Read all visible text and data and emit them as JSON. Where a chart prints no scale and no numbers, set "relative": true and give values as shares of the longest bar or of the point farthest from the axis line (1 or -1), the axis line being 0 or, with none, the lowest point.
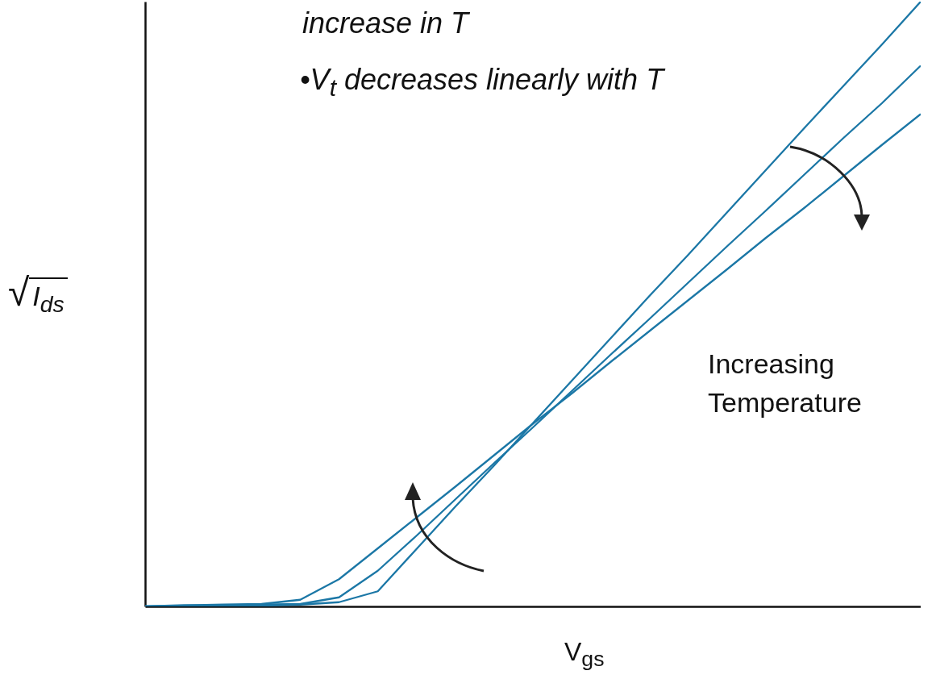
{
  "chart_data": {
    "type": "line",
    "relative": true,
    "xlabel": "V$_{gs}$",
    "ylabel": "√I$_{ds}$",
    "annotations": [
      "increase in T",
      "•V$_{t}$ decreases linearly with T",
      "Increasing Temperature"
    ],
    "categories": [
      null,
      null,
      null,
      null,
      null,
      null,
      null,
      null,
      null,
      null,
      null,
      null,
      null,
      null,
      null,
      null,
      null,
      null,
      null,
      null,
      null
    ],
    "series": [
      {
        "color": "#1b77a6",
        "values": [
          0,
          0.001,
          0.001,
          0.001,
          0.003,
          0.007,
          0.025,
          0.095,
          0.165,
          0.233,
          0.303,
          0.373,
          0.443,
          0.513,
          0.581,
          0.651,
          0.721,
          0.791,
          0.86,
          0.929,
          1
        ]
      },
      {
        "color": "#1b77a6",
        "values": [
          0,
          0.001,
          0.002,
          0.003,
          0.004,
          0.015,
          0.059,
          0.117,
          0.177,
          0.237,
          0.296,
          0.356,
          0.416,
          0.475,
          0.535,
          0.595,
          0.654,
          0.714,
          0.774,
          0.832,
          0.894
        ]
      },
      {
        "color": "#1b77a6",
        "values": [
          0,
          0.002,
          0.003,
          0.004,
          0.011,
          0.045,
          0.096,
          0.147,
          0.198,
          0.25,
          0.302,
          0.352,
          0.404,
          0.455,
          0.506,
          0.557,
          0.609,
          0.659,
          0.711,
          0.763,
          0.814
        ]
      }
    ]
  }
}
